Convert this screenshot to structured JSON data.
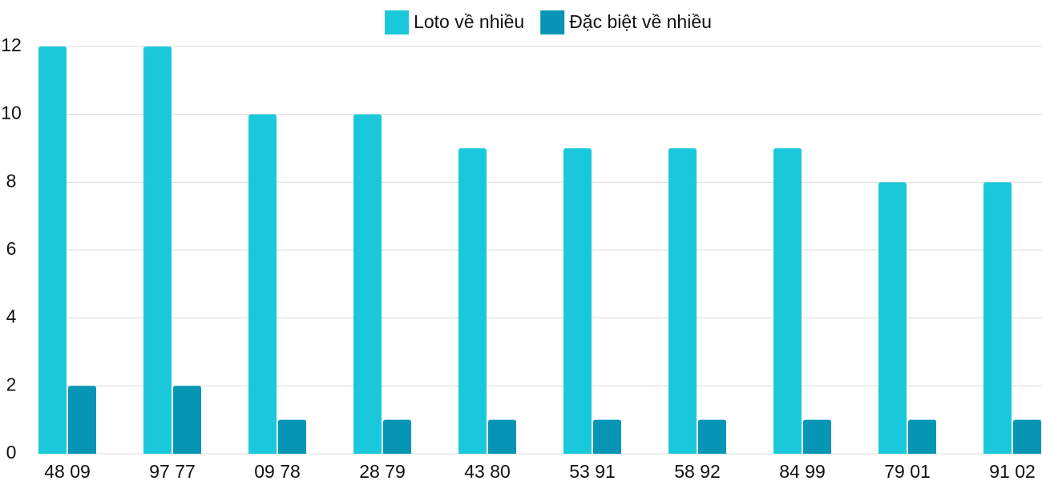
{
  "chart_data": {
    "type": "bar",
    "categories": [
      "48 09",
      "97 77",
      "09 78",
      "28 79",
      "43 80",
      "53 91",
      "58 92",
      "84 99",
      "79 01",
      "91 02"
    ],
    "series": [
      {
        "name": "Loto về nhiều",
        "color": "#1ac8db",
        "values": [
          12,
          12,
          10,
          10,
          9,
          9,
          9,
          9,
          8,
          8
        ]
      },
      {
        "name": "Đặc biệt về nhiều",
        "color": "#0795b6",
        "values": [
          2,
          2,
          1,
          1,
          1,
          1,
          1,
          1,
          1,
          1
        ]
      }
    ],
    "ylim": [
      0,
      12
    ],
    "yticks": [
      0,
      2,
      4,
      6,
      8,
      10,
      12
    ],
    "grid": true,
    "legend": "top"
  }
}
